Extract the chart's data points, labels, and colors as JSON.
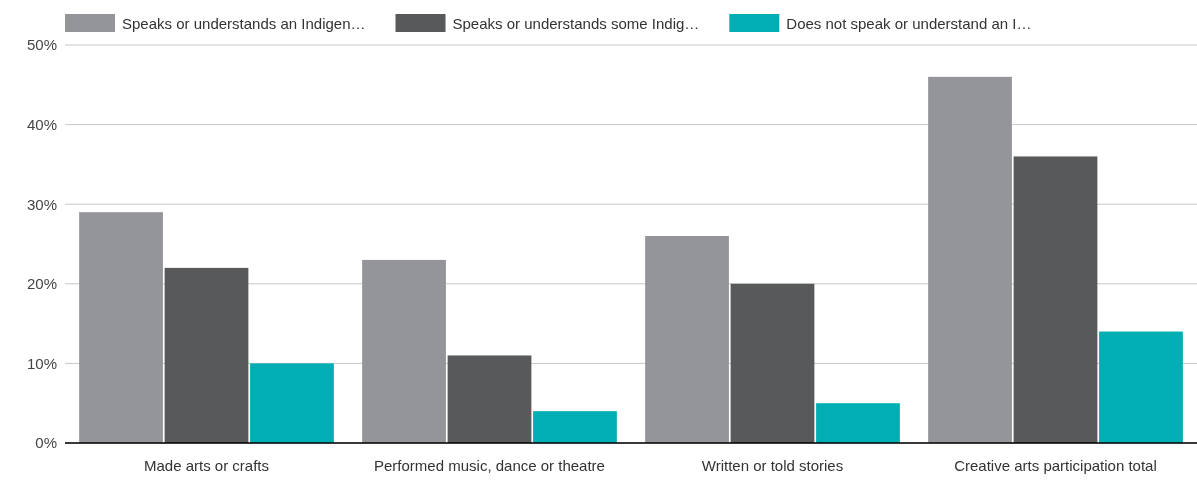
{
  "chart_data": {
    "type": "bar",
    "categories": [
      "Made arts or crafts",
      "Performed music, dance or theatre",
      "Written or told stories",
      "Creative arts participation total"
    ],
    "series": [
      {
        "name": "Speaks or understands an Indigen…",
        "color": "#939598",
        "values": [
          29,
          23,
          26,
          46
        ]
      },
      {
        "name": "Speaks or understands some Indig…",
        "color": "#58595b",
        "values": [
          22,
          11,
          20,
          36
        ]
      },
      {
        "name": "Does not speak or understand an I…",
        "color": "#00aeb3",
        "values": [
          10,
          4,
          5,
          14
        ]
      }
    ],
    "ylim": [
      0,
      50
    ],
    "yticks": [
      {
        "value": 0,
        "label": "0%"
      },
      {
        "value": 10,
        "label": "10%"
      },
      {
        "value": 20,
        "label": "20%"
      },
      {
        "value": 30,
        "label": "30%"
      },
      {
        "value": 40,
        "label": "40%"
      },
      {
        "value": 50,
        "label": "50%"
      }
    ],
    "grid": "y",
    "legend": "top"
  }
}
